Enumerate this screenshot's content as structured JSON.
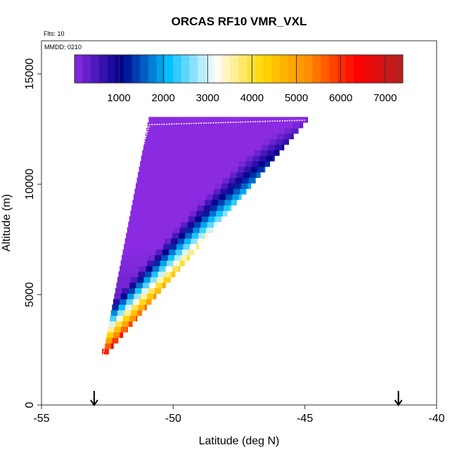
{
  "chart_data": {
    "type": "heatmap",
    "title": "ORCAS RF10 VMR_VXL",
    "flights_label": "Flts: 10",
    "date_label": "MMDD: 0210",
    "xlabel": "Latitude (deg N)",
    "ylabel": "Altitude (m)",
    "xlim": [
      -55,
      -40
    ],
    "ylim": [
      0,
      16500
    ],
    "x_ticks": [
      -55,
      -50,
      -45,
      -40
    ],
    "x_tick_labels": [
      "-55",
      "-50",
      "-45",
      "-40"
    ],
    "y_ticks": [
      0,
      5000,
      10000,
      15000
    ],
    "y_tick_labels": [
      "0",
      "5000",
      "10000",
      "15000"
    ],
    "colorbar": {
      "min": 0,
      "max": 7400,
      "ticks": [
        1000,
        2000,
        3000,
        4000,
        5000,
        6000,
        7000
      ],
      "tick_labels": [
        "1000",
        "2000",
        "3000",
        "4000",
        "5000",
        "6000",
        "7000"
      ],
      "colors": [
        "#8a2be2",
        "#00008b",
        "#00bfff",
        "#ffffff",
        "#ffd700",
        "#ff8c00",
        "#ff0000",
        "#b22222"
      ]
    },
    "wedge": {
      "lat_low": -52.7,
      "alt_low": 2300,
      "lat_top": -45.0,
      "alt_top": 13000,
      "value_bottom": 7200,
      "value_top": 50
    },
    "flight_track": {
      "x": [
        -52.65,
        -52.3,
        -51.8,
        -51.2,
        -50.9,
        -45.0
      ],
      "y": [
        2300,
        5000,
        8500,
        11500,
        12700,
        12900
      ]
    },
    "markers": [
      {
        "x": -53.0,
        "label": "down-arrow"
      },
      {
        "x": -41.45,
        "label": "down-arrow"
      }
    ]
  }
}
